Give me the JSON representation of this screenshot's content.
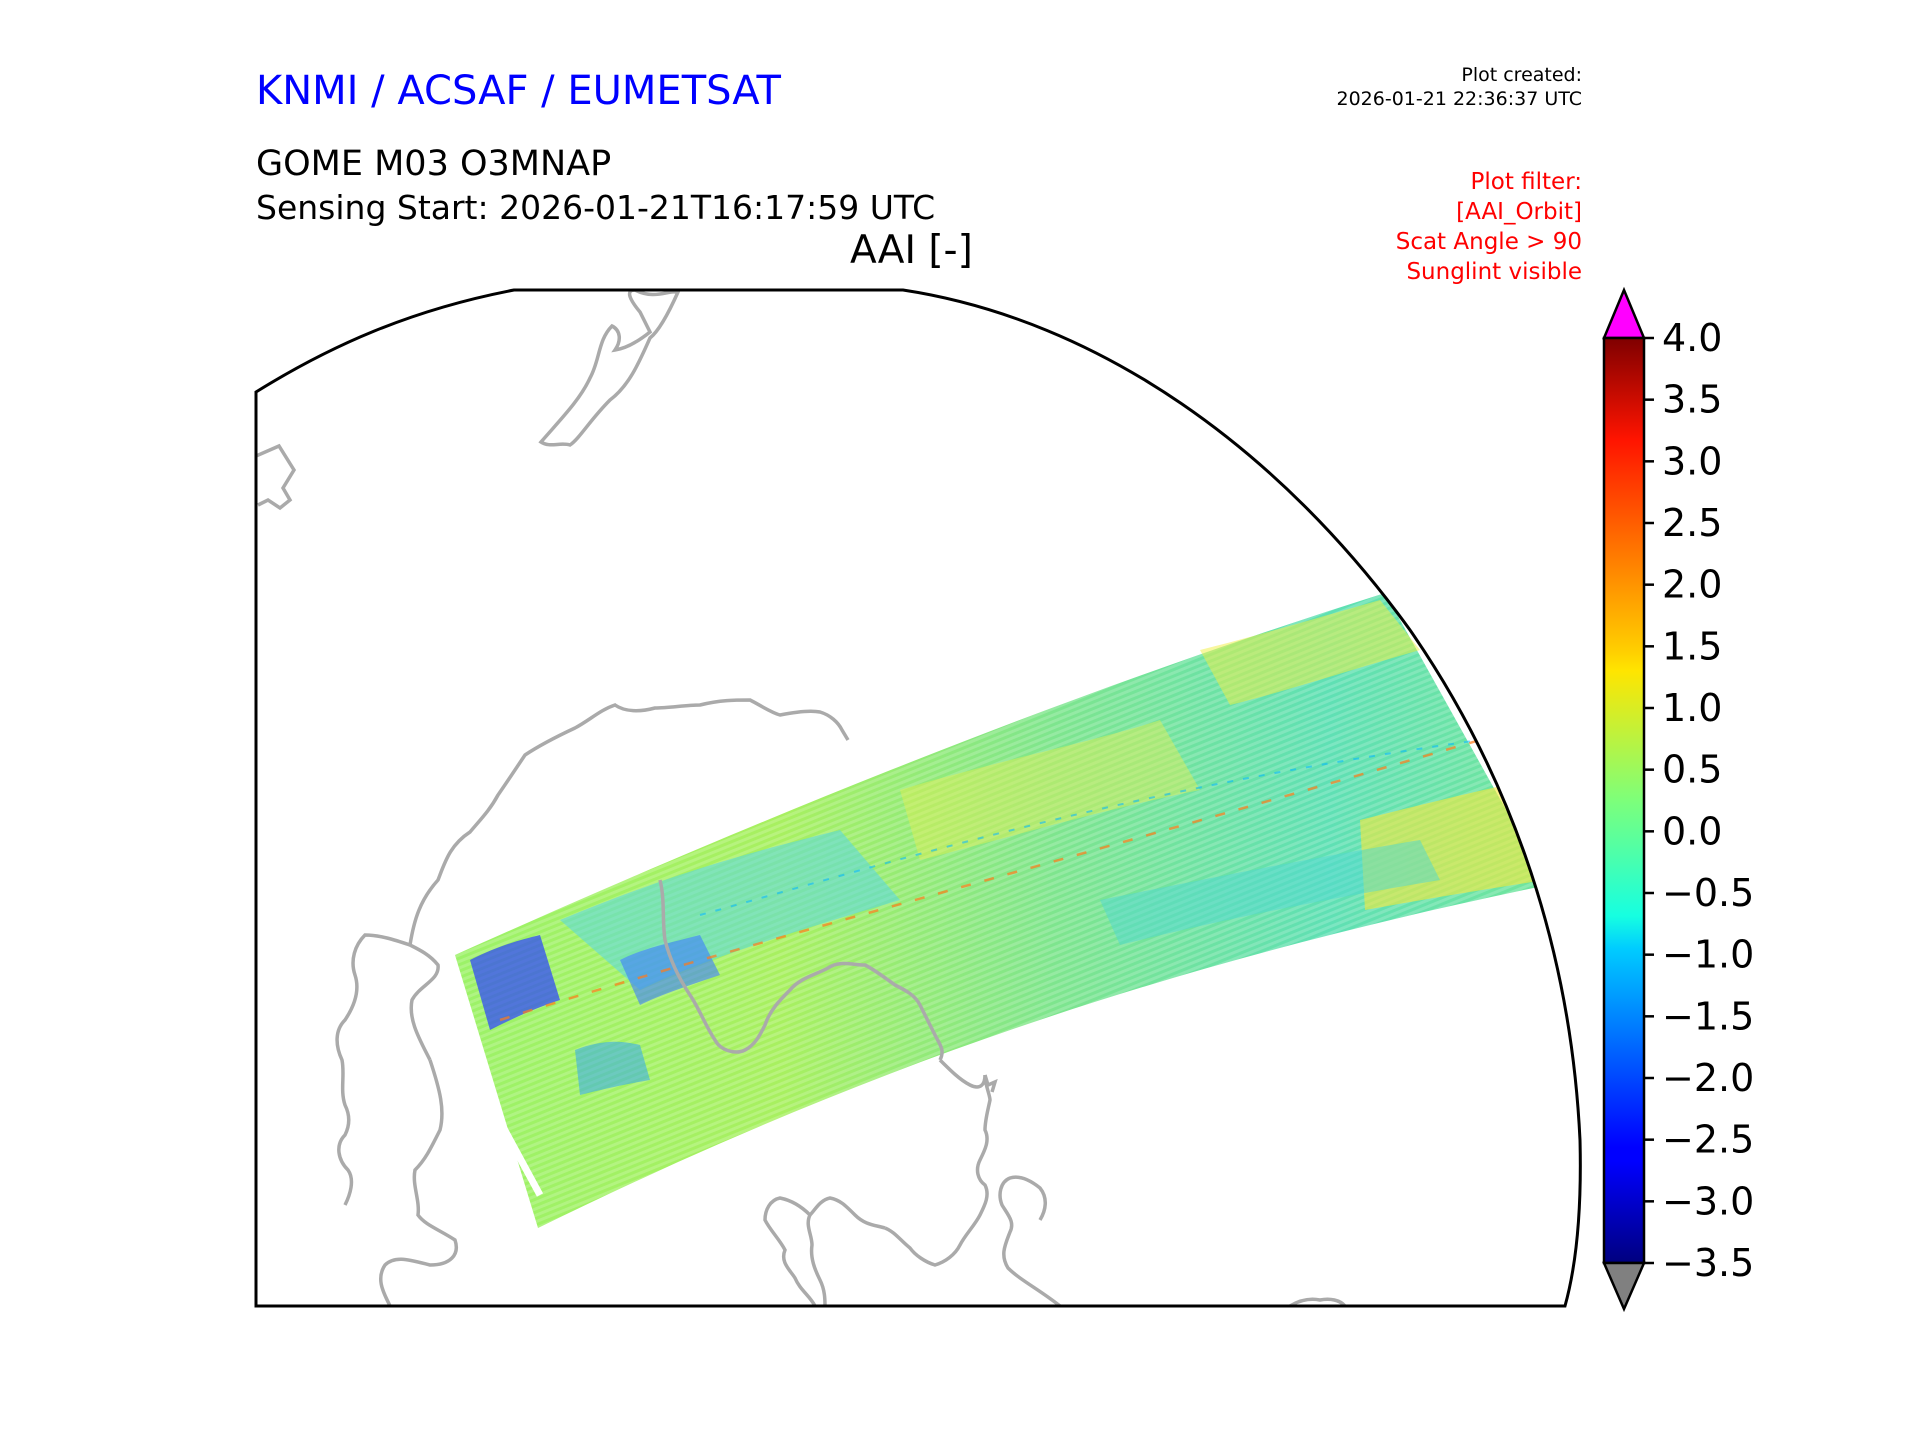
{
  "header": {
    "organisation": "KNMI / ACSAF / EUMETSAT",
    "plot_created_label": "Plot created:",
    "plot_created_value": "2026-01-21 22:36:37 UTC",
    "product": "GOME M03 O3MNAP",
    "sensing_start": "Sensing Start: 2026-01-21T16:17:59 UTC",
    "variable": "AAI [-]",
    "filter_lines": [
      "Plot filter:",
      "[AAI_Orbit]",
      "Scat Angle > 90",
      "Sunglint visible"
    ]
  },
  "colorbar": {
    "ticks": [
      "4.0",
      "3.5",
      "3.0",
      "2.5",
      "2.0",
      "1.5",
      "1.0",
      "0.5",
      "0.0",
      "−0.5",
      "−1.0",
      "−1.5",
      "−2.0",
      "−2.5",
      "−3.0",
      "−3.5"
    ],
    "range": [
      -3.5,
      4.0
    ],
    "over_color": "#ff00ff",
    "under_color": "#808080",
    "colormap": "jet"
  },
  "map": {
    "coastline_color": "#aaaaaa",
    "outline_color": "#000000"
  }
}
